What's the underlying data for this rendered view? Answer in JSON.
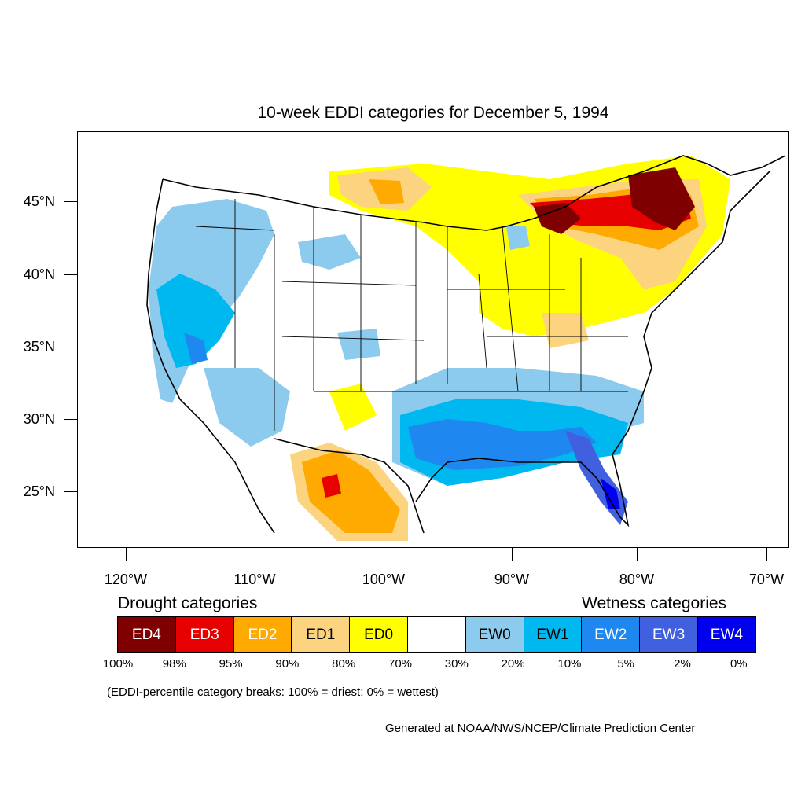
{
  "title": "10-week EDDI categories for December 5, 1994",
  "lat_labels": [
    "45°N",
    "40°N",
    "35°N",
    "30°N",
    "25°N"
  ],
  "lon_labels": [
    "120°W",
    "110°W",
    "100°W",
    "90°W",
    "80°W",
    "70°W"
  ],
  "drought_heading": "Drought categories",
  "wetness_heading": "Wetness categories",
  "legend": [
    {
      "label": "ED4",
      "color": "#7f0000",
      "text_color": "#ffffff"
    },
    {
      "label": "ED3",
      "color": "#e60000",
      "text_color": "#ffffff"
    },
    {
      "label": "ED2",
      "color": "#ffaa00",
      "text_color": "#ffffff"
    },
    {
      "label": "ED1",
      "color": "#fcd37f",
      "text_color": "#000000"
    },
    {
      "label": "ED0",
      "color": "#ffff00",
      "text_color": "#000000"
    },
    {
      "label": "",
      "color": "#ffffff",
      "text_color": "#000000"
    },
    {
      "label": "EW0",
      "color": "#8ccbee",
      "text_color": "#000000"
    },
    {
      "label": "EW1",
      "color": "#00b8f0",
      "text_color": "#000000"
    },
    {
      "label": "EW2",
      "color": "#1e88f0",
      "text_color": "#ffffff"
    },
    {
      "label": "EW3",
      "color": "#4060e0",
      "text_color": "#ffffff"
    },
    {
      "label": "EW4",
      "color": "#0000ee",
      "text_color": "#ffffff"
    }
  ],
  "breaks": [
    "100%",
    "98%",
    "95%",
    "90%",
    "80%",
    "70%",
    "30%",
    "20%",
    "10%",
    "5%",
    "2%",
    "0%"
  ],
  "note": "(EDDI-percentile category breaks: 100% = driest; 0% = wettest)",
  "credit": "Generated at NOAA/NWS/NCEP/Climate Prediction Center"
}
